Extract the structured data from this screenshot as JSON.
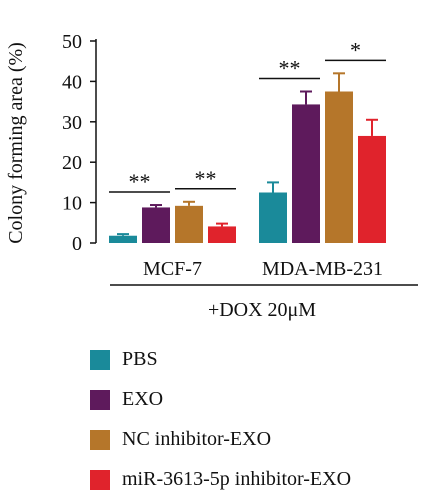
{
  "chart_data": {
    "type": "bar",
    "ylabel": "Colony forming area (%)",
    "ylim": [
      0,
      50
    ],
    "yticks": [
      0,
      10,
      20,
      30,
      40,
      50
    ],
    "groups": [
      "MCF-7",
      "MDA-MB-231"
    ],
    "treatment_label": "+DOX 20μM",
    "series": [
      {
        "name": "PBS",
        "color": "#1a8a9a",
        "values": [
          1.8,
          12.5
        ],
        "errors": [
          0.4,
          2.5
        ]
      },
      {
        "name": "EXO",
        "color": "#5e1a5c",
        "values": [
          8.8,
          34.3
        ],
        "errors": [
          0.6,
          3.2
        ]
      },
      {
        "name": "NC inhibitor-EXO",
        "color": "#b5762a",
        "values": [
          9.2,
          37.5
        ],
        "errors": [
          1.0,
          4.5
        ]
      },
      {
        "name": "miR-3613-5p inhibitor-EXO",
        "color": "#e0232c",
        "values": [
          4.1,
          26.5
        ],
        "errors": [
          0.7,
          4.0
        ]
      }
    ],
    "significance": [
      {
        "group": 0,
        "from": 0,
        "to": 1,
        "label": "**"
      },
      {
        "group": 0,
        "from": 2,
        "to": 3,
        "label": "**"
      },
      {
        "group": 1,
        "from": 0,
        "to": 1,
        "label": "**"
      },
      {
        "group": 1,
        "from": 2,
        "to": 3,
        "label": "*"
      }
    ],
    "grid": false,
    "legend_position": "bottom"
  }
}
